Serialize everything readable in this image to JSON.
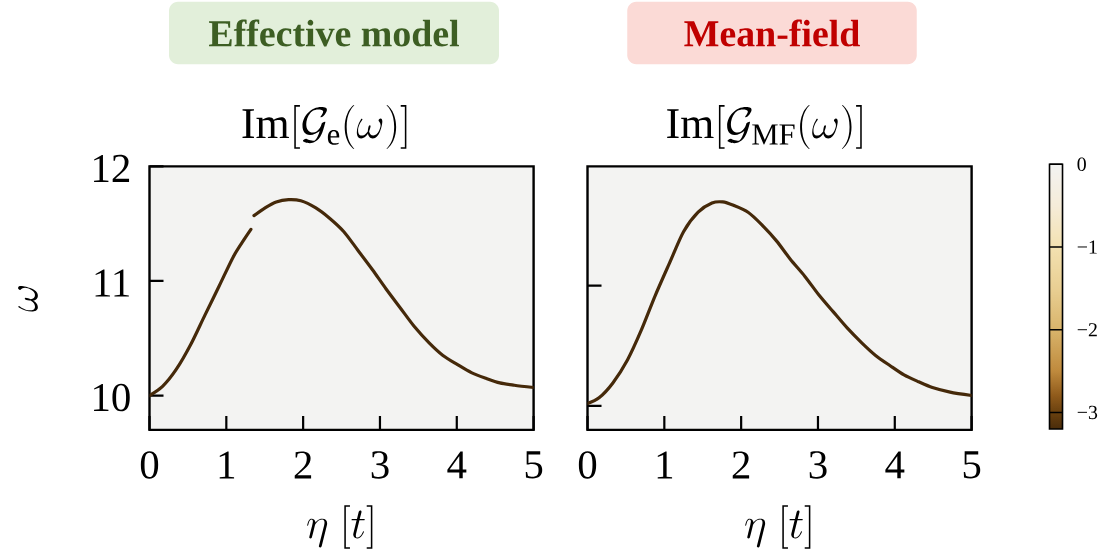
{
  "chart_data": [
    {
      "type": "line",
      "title": "Effective model",
      "subtitle": "\\mathrm{Im}[\\mathcal{G}_\\mathrm{e}(\\omega)]",
      "xlabel": "\\eta\\ [t]",
      "ylabel": "\\omega",
      "x": [
        0,
        0.17,
        0.35,
        0.54,
        0.72,
        0.91,
        1.09,
        1.23,
        1.32,
        1.34,
        1.36,
        1.51,
        1.65,
        1.81,
        1.97,
        2.16,
        2.34,
        2.53,
        2.71,
        2.9,
        3.08,
        3.27,
        3.45,
        3.64,
        3.82,
        4.01,
        4.19,
        4.38,
        4.56,
        4.75,
        5
      ],
      "series": [
        {
          "color": "#45290a",
          "values": [
            10.0,
            10.08,
            10.23,
            10.45,
            10.7,
            10.96,
            11.21,
            11.36,
            11.45,
            null,
            11.57,
            11.64,
            11.69,
            11.71,
            11.7,
            11.64,
            11.55,
            11.43,
            11.27,
            11.1,
            10.93,
            10.76,
            10.6,
            10.46,
            10.35,
            10.27,
            10.2,
            10.15,
            10.11,
            10.09,
            10.07
          ]
        }
      ],
      "xlim": [
        0,
        5
      ],
      "ylim": [
        9.7,
        12
      ],
      "xticks": [
        0,
        1,
        2,
        3,
        4,
        5
      ],
      "yticks": [
        10,
        11,
        12
      ]
    },
    {
      "type": "line",
      "title": "Mean-field",
      "subtitle": "\\mathrm{Im}[\\mathcal{G}_\\mathrm{MF}(\\omega)]",
      "xlabel": "\\eta\\ [t]",
      "x": [
        0,
        0.15,
        0.33,
        0.52,
        0.7,
        0.88,
        1.07,
        1.25,
        1.44,
        1.62,
        1.76,
        1.9,
        2.09,
        2.27,
        2.46,
        2.64,
        2.83,
        3.01,
        3.2,
        3.38,
        3.57,
        3.75,
        3.94,
        4.12,
        4.31,
        4.49,
        4.72,
        5
      ],
      "series": [
        {
          "color": "#45290a",
          "values": [
            9.93,
            9.98,
            10.11,
            10.31,
            10.57,
            10.87,
            11.16,
            11.43,
            11.6,
            11.68,
            11.69,
            11.66,
            11.6,
            11.49,
            11.35,
            11.19,
            11.04,
            10.88,
            10.73,
            10.59,
            10.46,
            10.35,
            10.26,
            10.18,
            10.12,
            10.07,
            10.03,
            10.0
          ]
        }
      ],
      "xlim": [
        0,
        5
      ],
      "ylim": [
        9.7,
        12
      ],
      "xticks": [
        0,
        1,
        2,
        3,
        4,
        5
      ],
      "yticks": [
        {
          "value": 9.91,
          "label": null
        },
        {
          "value": 10.96,
          "label": null
        }
      ],
      "tick_labels": "x",
      "clim": [
        -3.2,
        0
      ],
      "cticks": [
        0,
        {
          "value": -1,
          "label": "−1"
        },
        {
          "value": -2,
          "label": "−2"
        },
        {
          "value": -3,
          "label": "−3"
        }
      ]
    }
  ]
}
